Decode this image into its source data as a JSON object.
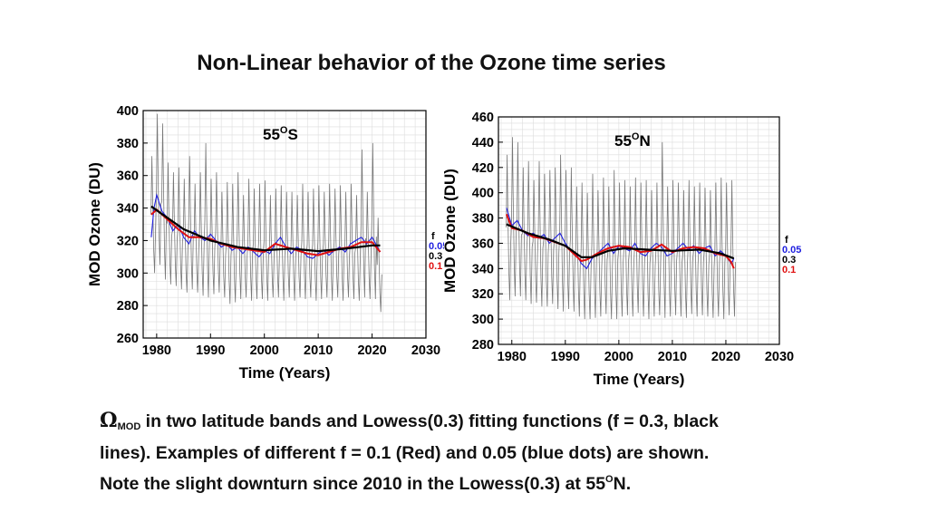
{
  "slide": {
    "title": "Non-Linear behavior of the Ozone time series",
    "caption": {
      "symbol": "Ω",
      "symbol_sub": "MOD",
      "line1": " in two latitude bands and Lowess(0.3) fitting functions (f = 0.3, black",
      "line2": "lines). Examples of different f = 0.1 (Red) and 0.05 (blue dots) are shown.",
      "line3_prefix": "Note the slight downturn since 2010 in the Lowess(0.3) at 55",
      "line3_sup": "O",
      "line3_suffix": "N."
    }
  },
  "chart_data": [
    {
      "type": "line",
      "panel_label": "55",
      "panel_label_sup": "O",
      "panel_label_suffix": "S",
      "xlabel": "Time (Years)",
      "ylabel": "MOD Ozone (DU)",
      "xlim": [
        1977.5,
        2030
      ],
      "ylim": [
        260,
        400
      ],
      "xticks": [
        1980,
        1990,
        2000,
        2010,
        2020,
        2030
      ],
      "yticks": [
        260,
        280,
        300,
        320,
        340,
        360,
        380,
        400
      ],
      "grid": true,
      "legend": {
        "placement": "right",
        "title": "f",
        "entries": [
          "0.05",
          "0.3",
          "0.1"
        ],
        "colors": [
          "#1f1fe0",
          "#000000",
          "#e01010"
        ]
      },
      "colors": {
        "monthly": "#777777",
        "f_0.05": "#1f1fe0",
        "f_0.3": "#000000",
        "f_0.1": "#e01010"
      },
      "monthly_extremes": {
        "x": [
          1979,
          1980,
          1981,
          1982,
          1983,
          1984,
          1985,
          1986,
          1987,
          1988,
          1989,
          1990,
          1991,
          1992,
          1993,
          1994,
          1995,
          1996,
          1997,
          1998,
          1999,
          2000,
          2001,
          2002,
          2003,
          2004,
          2005,
          2006,
          2007,
          2008,
          2009,
          2010,
          2011,
          2012,
          2013,
          2014,
          2015,
          2016,
          2017,
          2018,
          2019,
          2020,
          2021
        ],
        "max": [
          372,
          398,
          392,
          368,
          362,
          365,
          358,
          372,
          355,
          362,
          380,
          358,
          362,
          350,
          356,
          355,
          362,
          348,
          358,
          352,
          355,
          357,
          348,
          352,
          354,
          350,
          350,
          348,
          355,
          350,
          352,
          354,
          350,
          355,
          352,
          354,
          350,
          355,
          348,
          376,
          350,
          380,
          334
        ],
        "min": [
          300,
          305,
          296,
          293,
          292,
          290,
          288,
          290,
          288,
          286,
          285,
          287,
          288,
          285,
          281,
          282,
          284,
          285,
          283,
          284,
          284,
          283,
          285,
          285,
          283,
          285,
          283,
          285,
          284,
          285,
          283,
          284,
          285,
          283,
          285,
          283,
          285,
          284,
          283,
          285,
          284,
          284,
          276
        ]
      },
      "lowess_0.3": {
        "x": [
          1979,
          1982,
          1985,
          1990,
          1995,
          2000,
          2005,
          2010,
          2015,
          2020,
          2021.5
        ],
        "y": [
          341,
          334,
          327,
          320,
          316,
          314,
          315,
          313.5,
          315,
          317,
          317
        ]
      },
      "lowess_0.1": {
        "x": [
          1979,
          1980,
          1982,
          1984,
          1986,
          1988,
          1990,
          1992,
          1994,
          1996,
          1998,
          2000,
          2002,
          2004,
          2006,
          2008,
          2010,
          2012,
          2014,
          2016,
          2018,
          2020,
          2021.5
        ],
        "y": [
          336,
          339,
          333,
          327,
          322,
          322,
          321,
          318,
          316,
          315,
          314,
          313,
          318,
          316,
          314,
          312,
          311,
          313,
          315,
          316,
          319,
          319,
          313
        ]
      },
      "lowess_0.05": {
        "x": [
          1979,
          1979.5,
          1980,
          1981,
          1982,
          1983,
          1984,
          1985,
          1986,
          1987,
          1988,
          1989,
          1990,
          1991,
          1992,
          1993,
          1994,
          1995,
          1996,
          1997,
          1998,
          1999,
          2000,
          2001,
          2002,
          2003,
          2004,
          2005,
          2006,
          2007,
          2008,
          2009,
          2010,
          2011,
          2012,
          2013,
          2014,
          2015,
          2016,
          2017,
          2018,
          2019,
          2020,
          2021,
          2021.5
        ],
        "y": [
          322,
          340,
          348,
          338,
          334,
          326,
          330,
          322,
          318,
          326,
          322,
          320,
          324,
          320,
          316,
          318,
          314,
          316,
          312,
          316,
          313,
          310,
          314,
          312,
          318,
          322,
          316,
          312,
          316,
          314,
          310,
          309,
          312,
          314,
          311,
          314,
          316,
          313,
          318,
          320,
          322,
          318,
          322,
          316,
          313
        ]
      }
    },
    {
      "type": "line",
      "panel_label": "55",
      "panel_label_sup": "O",
      "panel_label_suffix": "N",
      "xlabel": "Time (Years)",
      "ylabel": "MOD Ozone (DU)",
      "xlim": [
        1977.5,
        2030
      ],
      "ylim": [
        280,
        460
      ],
      "xticks": [
        1980,
        1990,
        2000,
        2010,
        2020,
        2030
      ],
      "yticks": [
        280,
        300,
        320,
        340,
        360,
        380,
        400,
        420,
        440,
        460
      ],
      "grid": true,
      "legend": {
        "placement": "right",
        "title": "f",
        "entries": [
          "0.05",
          "0.3",
          "0.1"
        ],
        "colors": [
          "#1f1fe0",
          "#000000",
          "#e01010"
        ]
      },
      "colors": {
        "monthly": "#777777",
        "f_0.05": "#1f1fe0",
        "f_0.3": "#000000",
        "f_0.1": "#e01010"
      },
      "monthly_extremes": {
        "x": [
          1979,
          1980,
          1981,
          1982,
          1983,
          1984,
          1985,
          1986,
          1987,
          1988,
          1989,
          1990,
          1991,
          1992,
          1993,
          1994,
          1995,
          1996,
          1997,
          1998,
          1999,
          2000,
          2001,
          2002,
          2003,
          2004,
          2005,
          2006,
          2007,
          2008,
          2009,
          2010,
          2011,
          2012,
          2013,
          2014,
          2015,
          2016,
          2017,
          2018,
          2019,
          2020,
          2021
        ],
        "max": [
          430,
          444,
          440,
          420,
          425,
          410,
          425,
          415,
          418,
          420,
          430,
          418,
          420,
          405,
          408,
          400,
          415,
          402,
          412,
          405,
          418,
          408,
          410,
          405,
          412,
          408,
          410,
          402,
          408,
          440,
          405,
          410,
          408,
          402,
          410,
          405,
          408,
          404,
          402,
          408,
          412,
          408,
          410
        ],
        "min": [
          315,
          318,
          318,
          315,
          312,
          313,
          310,
          310,
          312,
          308,
          306,
          308,
          306,
          302,
          300,
          300,
          301,
          302,
          304,
          300,
          300,
          302,
          303,
          302,
          305,
          302,
          300,
          302,
          303,
          301,
          302,
          303,
          302,
          301,
          304,
          302,
          303,
          302,
          301,
          302,
          300,
          303,
          302
        ]
      },
      "lowess_0.3": {
        "x": [
          1979,
          1983,
          1987,
          1990,
          1993,
          1995,
          1998,
          2001,
          2005,
          2010,
          2015,
          2019,
          2021.5
        ],
        "y": [
          375,
          368,
          363,
          358,
          349,
          349,
          354,
          356,
          355,
          354,
          355,
          352,
          348
        ]
      },
      "lowess_0.1": {
        "x": [
          1979,
          1980,
          1982,
          1984,
          1986,
          1988,
          1990,
          1992,
          1993,
          1994,
          1996,
          1998,
          2000,
          2002,
          2004,
          2006,
          2008,
          2010,
          2012,
          2014,
          2016,
          2018,
          2020,
          2021,
          2021.5
        ],
        "y": [
          383,
          372,
          370,
          365,
          364,
          361,
          358,
          350,
          346,
          347,
          352,
          356,
          358,
          357,
          353,
          354,
          359,
          353,
          356,
          357,
          356,
          352,
          350,
          345,
          340
        ]
      },
      "lowess_0.05": {
        "x": [
          1979,
          1980,
          1981,
          1982,
          1983,
          1984,
          1985,
          1986,
          1987,
          1988,
          1989,
          1990,
          1991,
          1992,
          1993,
          1994,
          1995,
          1996,
          1997,
          1998,
          1999,
          2000,
          2001,
          2002,
          2003,
          2004,
          2005,
          2006,
          2007,
          2008,
          2009,
          2010,
          2011,
          2012,
          2013,
          2014,
          2015,
          2016,
          2017,
          2018,
          2019,
          2020,
          2021,
          2021.5
        ],
        "y": [
          388,
          374,
          378,
          370,
          366,
          368,
          364,
          367,
          360,
          364,
          368,
          360,
          354,
          352,
          344,
          340,
          348,
          352,
          356,
          360,
          352,
          358,
          356,
          354,
          360,
          352,
          350,
          356,
          360,
          357,
          350,
          352,
          356,
          360,
          355,
          358,
          352,
          356,
          358,
          350,
          354,
          350,
          344,
          348
        ]
      }
    }
  ]
}
